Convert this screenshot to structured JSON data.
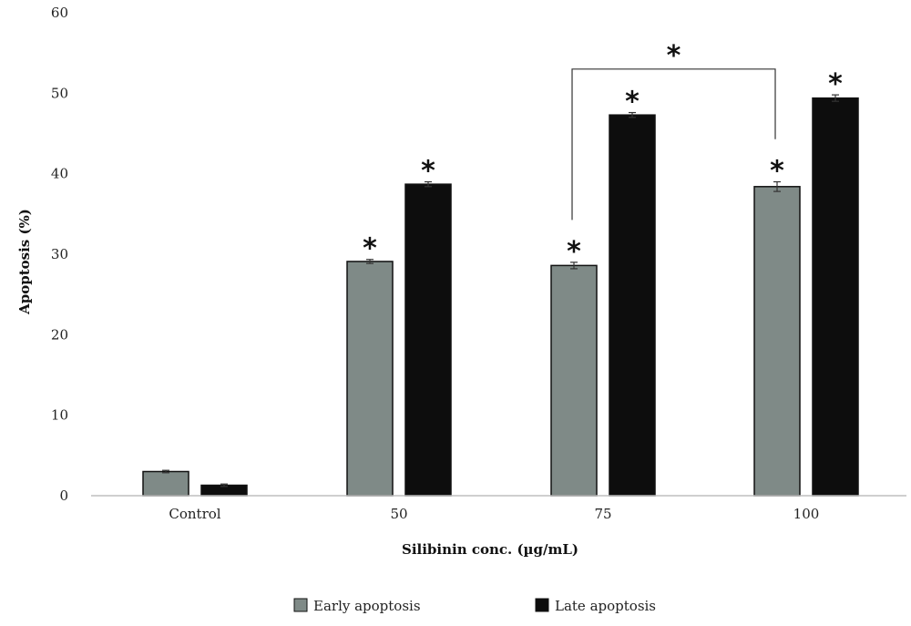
{
  "chart_data": {
    "type": "bar",
    "title": "",
    "xlabel": "Silibinin conc. (µg/mL)",
    "ylabel": "Apoptosis (%)",
    "ylim": [
      0,
      60
    ],
    "yticks": [
      0,
      10,
      20,
      30,
      40,
      50,
      60
    ],
    "grid": false,
    "legend_position": "bottom",
    "categories": [
      "Control",
      "50",
      "75",
      "100"
    ],
    "series": [
      {
        "name": "Early apoptosis",
        "color": "#7f8a87",
        "values": [
          3.0,
          29.1,
          28.6,
          38.4
        ],
        "errors": [
          0.15,
          0.25,
          0.4,
          0.6
        ],
        "significance": [
          "",
          "*",
          "*",
          "*"
        ]
      },
      {
        "name": "Late apoptosis",
        "color": "#0d0d0d",
        "values": [
          1.3,
          38.7,
          47.3,
          49.4
        ],
        "errors": [
          0.15,
          0.3,
          0.3,
          0.4
        ],
        "significance": [
          "",
          "*",
          "*",
          "*"
        ]
      }
    ],
    "comparison_brackets": [
      {
        "from_category": "75",
        "to_category": "100",
        "series": "Early apoptosis",
        "level": 53,
        "label": "*"
      }
    ]
  }
}
